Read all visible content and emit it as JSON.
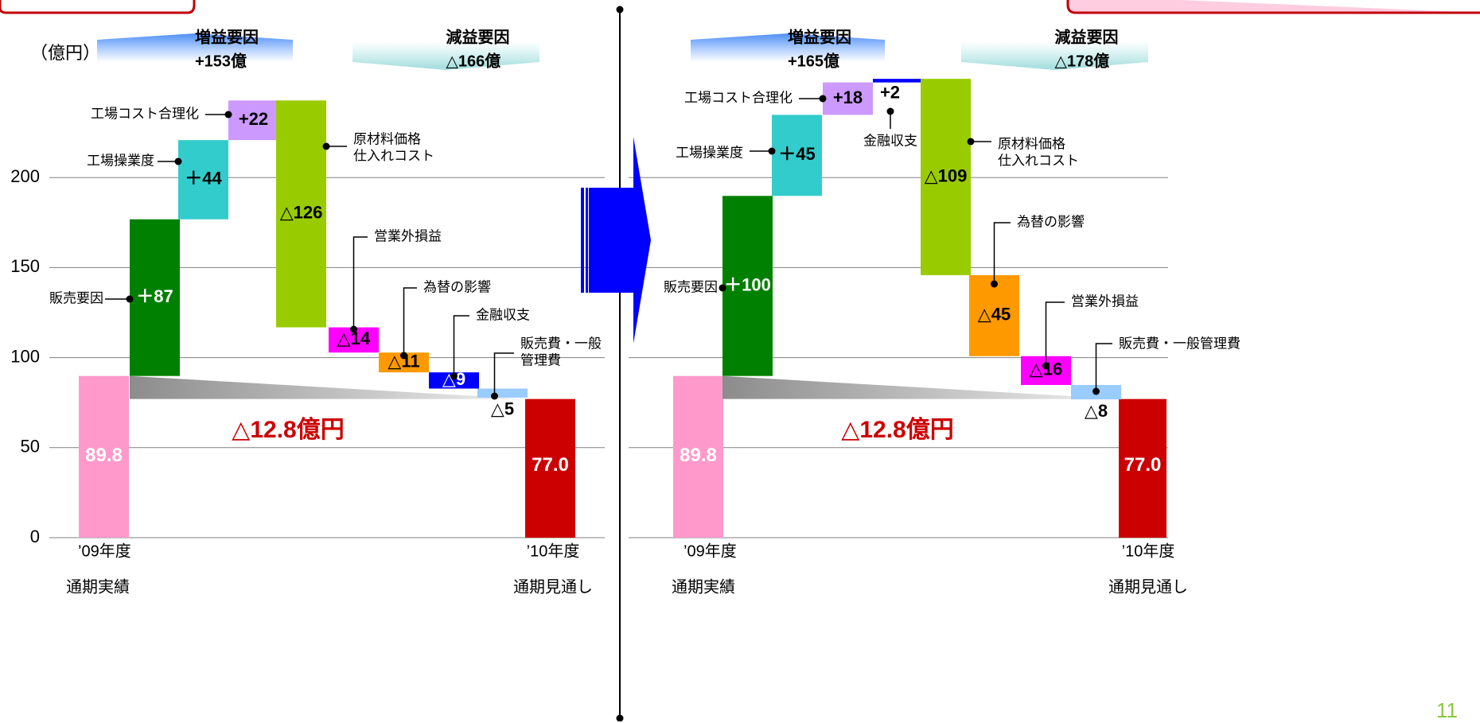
{
  "page": {
    "number": "11"
  },
  "chart_data": {
    "type": "bar",
    "subtype": "waterfall",
    "y_unit_label": "（億円）",
    "ylim": [
      0,
      250
    ],
    "yticks": [
      0,
      50,
      100,
      150,
      200
    ],
    "grid": true,
    "colors": {
      "start": "#ff99cc",
      "end": "#cc0000",
      "sales": "#008000",
      "plant_ops": "#33cccc",
      "plant_cost": "#cc99ff",
      "finance_pos": "#0000ff",
      "raw_materials": "#99cc00",
      "non_op": "#ff00ff",
      "fx": "#ff9900",
      "finance_neg": "#0000ff",
      "sga": "#99ccff",
      "diff_text": "#cc0000",
      "arrow": "#0000ff"
    },
    "panels": [
      {
        "increase_header": {
          "title": "増益要因",
          "total": "+153億"
        },
        "decrease_header": {
          "title": "減益要因",
          "total": "△166億"
        },
        "start": {
          "category": [
            "’09年度",
            "通期実績"
          ],
          "value": 89.8,
          "label": "89.8"
        },
        "end": {
          "category": [
            "’10年度",
            "通期見通し"
          ],
          "value": 77.0,
          "label": "77.0"
        },
        "difference_label": "△12.8億円",
        "steps": [
          {
            "name": "販売要因",
            "delta": 87,
            "value_label": "＋87",
            "color_key": "sales"
          },
          {
            "name": "工場操業度",
            "delta": 44,
            "value_label": "＋44",
            "color_key": "plant_ops"
          },
          {
            "name": "工場コスト合理化",
            "delta": 22,
            "value_label": "+22",
            "color_key": "plant_cost"
          },
          {
            "name": "原材料価格 仕入れコスト",
            "delta": -126,
            "value_label": "△126",
            "color_key": "raw_materials"
          },
          {
            "name": "営業外損益",
            "delta": -14,
            "value_label": "△14",
            "color_key": "non_op"
          },
          {
            "name": "為替の影響",
            "delta": -11,
            "value_label": "△11",
            "color_key": "fx"
          },
          {
            "name": "金融収支",
            "delta": -9,
            "value_label": "△9",
            "color_key": "finance_neg"
          },
          {
            "name": "販売費・一般 管理費",
            "delta": -5,
            "value_label": "△5",
            "color_key": "sga"
          }
        ]
      },
      {
        "increase_header": {
          "title": "増益要因",
          "total": "+165億"
        },
        "decrease_header": {
          "title": "減益要因",
          "total": "△178億"
        },
        "start": {
          "category": [
            "’09年度",
            "通期実績"
          ],
          "value": 89.8,
          "label": "89.8"
        },
        "end": {
          "category": [
            "’10年度",
            "通期見通し"
          ],
          "value": 77.0,
          "label": "77.0"
        },
        "difference_label": "△12.8億円",
        "steps": [
          {
            "name": "販売要因",
            "delta": 100,
            "value_label": "＋100",
            "color_key": "sales"
          },
          {
            "name": "工場操業度",
            "delta": 45,
            "value_label": "＋45",
            "color_key": "plant_ops"
          },
          {
            "name": "工場コスト合理化",
            "delta": 18,
            "value_label": "+18",
            "color_key": "plant_cost"
          },
          {
            "name": "金融収支",
            "delta": 2,
            "value_label": "+2",
            "color_key": "finance_pos"
          },
          {
            "name": "原材料価格 仕入れコスト",
            "delta": -109,
            "value_label": "△109",
            "color_key": "raw_materials"
          },
          {
            "name": "為替の影響",
            "delta": -45,
            "value_label": "△45",
            "color_key": "fx"
          },
          {
            "name": "営業外損益",
            "delta": -16,
            "value_label": "△16",
            "color_key": "non_op"
          },
          {
            "name": "販売費・一般管理費",
            "delta": -8,
            "value_label": "△8",
            "color_key": "sga"
          }
        ]
      }
    ]
  }
}
